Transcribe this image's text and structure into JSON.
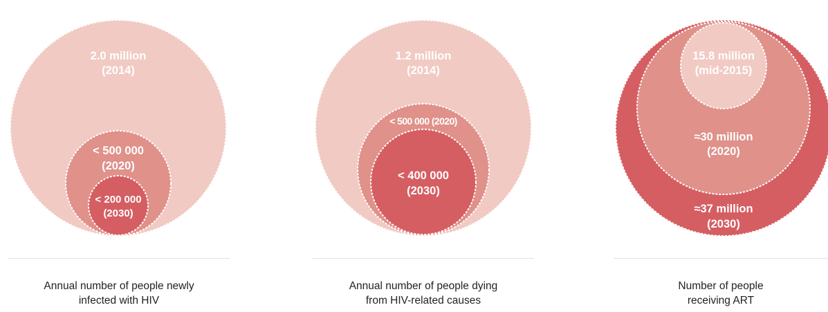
{
  "colors": {
    "light": "#f1cac3",
    "medium": "#df918a",
    "dark": "#d55e62",
    "stroke": "#ffffff"
  },
  "panels": [
    {
      "caption_line1": "Annual number of people newly",
      "caption_line2": "infected with HIV",
      "circles": [
        {
          "value_line1": "2.0 million",
          "value_line2": "(2014)"
        },
        {
          "value_line1": "< 500 000",
          "value_line2": "(2020)"
        },
        {
          "value_line1": "< 200 000",
          "value_line2": "(2030)"
        }
      ]
    },
    {
      "caption_line1": "Annual number of people dying",
      "caption_line2": "from HIV-related causes",
      "circles": [
        {
          "value_line1": "1.2 million",
          "value_line2": "(2014)"
        },
        {
          "value_line1": "< 500 000 (2020)",
          "value_line2": ""
        },
        {
          "value_line1": "< 400 000",
          "value_line2": "(2030)"
        }
      ]
    },
    {
      "caption_line1": "Number of people",
      "caption_line2": "receiving ART",
      "circles": [
        {
          "value_line1": "≈37 million",
          "value_line2": "(2030)"
        },
        {
          "value_line1": "≈30 million",
          "value_line2": "(2020)"
        },
        {
          "value_line1": "15.8 million",
          "value_line2": "(mid-2015)"
        }
      ]
    }
  ]
}
